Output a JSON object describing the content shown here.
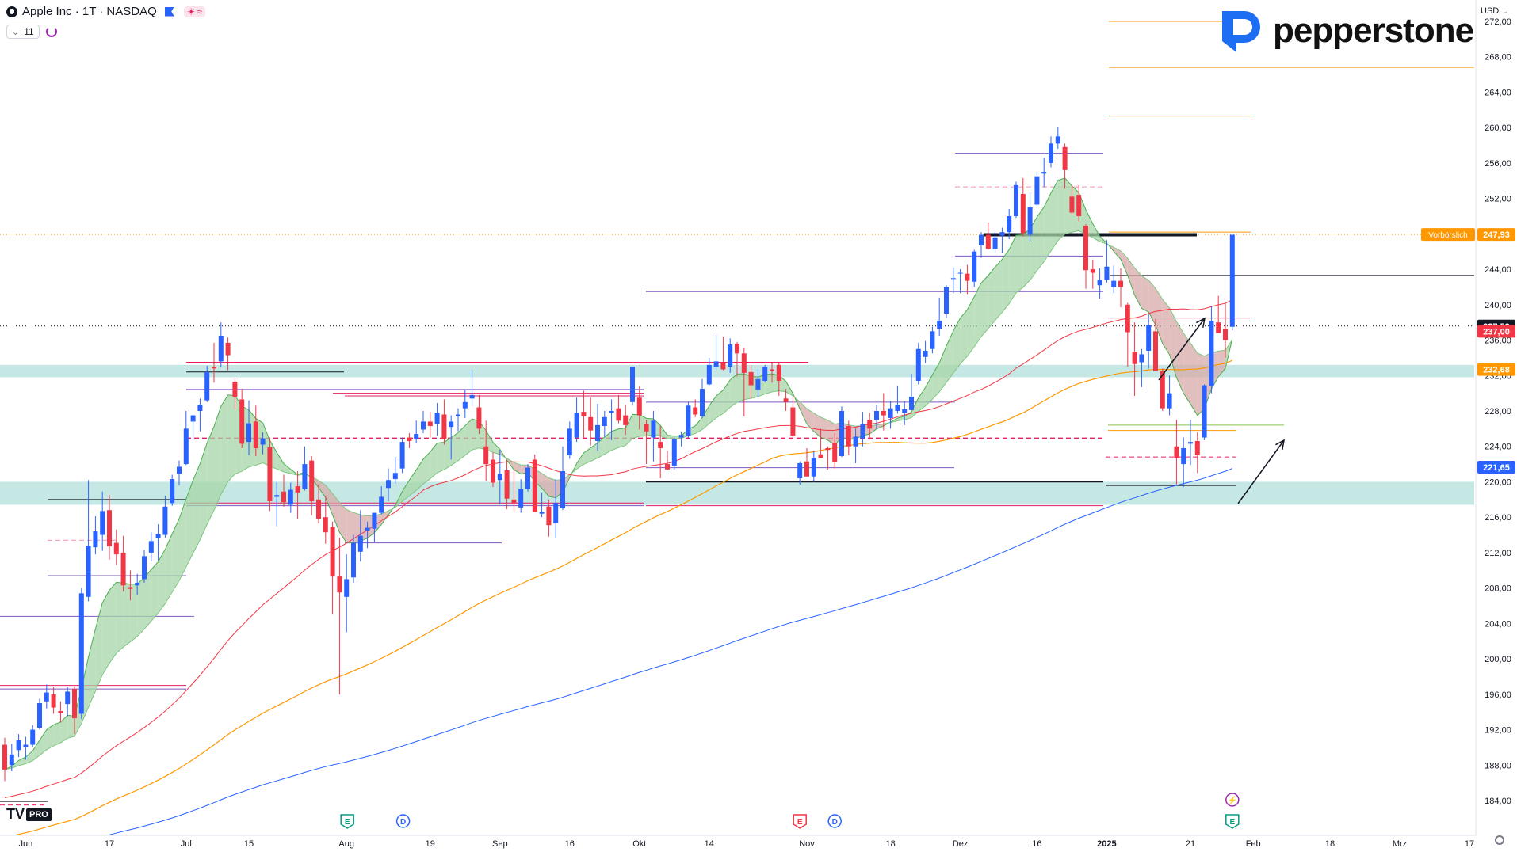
{
  "header": {
    "title": "Apple Inc · 1T · NASDAQ",
    "indicator_count": "11",
    "currency": "USD"
  },
  "brand": {
    "name": "pepperstone"
  },
  "chart_data": {
    "type": "candlestick",
    "y_range": [
      182,
      274
    ],
    "y_ticks": [
      "272,00",
      "268,00",
      "264,00",
      "260,00",
      "256,00",
      "252,00",
      "248,00",
      "244,00",
      "240,00",
      "236,00",
      "232,00",
      "228,00",
      "224,00",
      "220,00",
      "216,00",
      "212,00",
      "208,00",
      "204,00",
      "200,00",
      "196,00",
      "192,00",
      "188,00",
      "184,00"
    ],
    "x_labels": [
      {
        "label": "Jun",
        "i": 3,
        "bold": false
      },
      {
        "label": "17",
        "i": 15,
        "bold": false
      },
      {
        "label": "Jul",
        "i": 26,
        "bold": false
      },
      {
        "label": "15",
        "i": 35,
        "bold": false
      },
      {
        "label": "Aug",
        "i": 49,
        "bold": false
      },
      {
        "label": "19",
        "i": 61,
        "bold": false
      },
      {
        "label": "Sep",
        "i": 71,
        "bold": false
      },
      {
        "label": "16",
        "i": 81,
        "bold": false
      },
      {
        "label": "Okt",
        "i": 91,
        "bold": false
      },
      {
        "label": "14",
        "i": 101,
        "bold": false
      },
      {
        "label": "Nov",
        "i": 115,
        "bold": false
      },
      {
        "label": "18",
        ",i": 0,
        "i": 127,
        "bold": false
      },
      {
        "label": "Dez",
        "i": 137,
        "bold": false
      },
      {
        "label": "16",
        "i": 148,
        "bold": false
      },
      {
        "label": "2025",
        "i": 158,
        "bold": true
      },
      {
        "label": "21",
        "i": 170,
        "bold": false
      },
      {
        "label": "Feb",
        "i": 179,
        "bold": false
      },
      {
        "label": "18",
        "i": 190,
        "bold": false
      },
      {
        "label": "Mrz",
        "i": 200,
        "bold": false
      },
      {
        "label": "17",
        "i": 210,
        "bold": false
      }
    ],
    "price_labels": [
      {
        "text": "247,93",
        "value": 247.93,
        "color": "#ff9800",
        "tag": "Vorbörslich"
      },
      {
        "text": "237,59",
        "value": 237.59,
        "color": "#131722",
        "tag": ""
      },
      {
        "text": "237,00",
        "value": 237.0,
        "color": "#f23645",
        "tag": ""
      },
      {
        "text": "232,68",
        "value": 232.68,
        "color": "#ff9800",
        "tag": ""
      },
      {
        "text": "221,65",
        "value": 221.65,
        "color": "#2962ff",
        "tag": ""
      }
    ],
    "candles": [
      [
        190.3,
        191.1,
        186.2,
        187.5
      ],
      [
        188.0,
        190.4,
        187.3,
        189.2
      ],
      [
        189.7,
        191.5,
        188.9,
        190.8
      ],
      [
        190.0,
        191.2,
        188.6,
        190.3
      ],
      [
        190.3,
        192.5,
        190.0,
        192.0
      ],
      [
        192.2,
        195.5,
        192.0,
        195.0
      ],
      [
        195.2,
        197.1,
        194.4,
        196.2
      ],
      [
        196.0,
        196.8,
        193.8,
        194.5
      ],
      [
        194.1,
        195.2,
        192.8,
        193.9
      ],
      [
        194.9,
        196.8,
        193.5,
        196.3
      ],
      [
        196.6,
        196.9,
        191.5,
        193.3
      ],
      [
        193.8,
        208.0,
        193.2,
        207.4
      ],
      [
        207.0,
        220.2,
        206.5,
        212.8
      ],
      [
        212.6,
        216.1,
        211.8,
        214.4
      ],
      [
        214.0,
        218.9,
        212.2,
        216.7
      ],
      [
        216.8,
        218.5,
        211.2,
        212.7
      ],
      [
        213.1,
        214.6,
        210.6,
        211.8
      ],
      [
        212.0,
        213.9,
        207.6,
        208.3
      ],
      [
        208.1,
        210.0,
        206.6,
        207.9
      ],
      [
        208.3,
        209.6,
        207.2,
        208.6
      ],
      [
        209.0,
        212.3,
        208.6,
        211.6
      ],
      [
        212.0,
        214.3,
        211.0,
        213.3
      ],
      [
        213.6,
        215.2,
        211.1,
        214.1
      ],
      [
        214.0,
        218.4,
        213.7,
        217.2
      ],
      [
        217.6,
        220.8,
        217.3,
        220.3
      ],
      [
        220.9,
        222.4,
        219.6,
        221.7
      ],
      [
        222.0,
        228.0,
        221.9,
        226.0
      ],
      [
        226.8,
        227.6,
        224.7,
        227.5
      ],
      [
        228.0,
        229.4,
        225.7,
        228.7
      ],
      [
        229.2,
        233.1,
        229.0,
        232.4
      ],
      [
        233.0,
        235.7,
        231.2,
        232.8
      ],
      [
        233.6,
        238.0,
        233.0,
        236.5
      ],
      [
        235.7,
        236.3,
        232.6,
        234.3
      ],
      [
        231.3,
        231.7,
        228.2,
        229.6
      ],
      [
        229.3,
        230.5,
        223.8,
        224.3
      ],
      [
        224.5,
        229.2,
        223.0,
        226.6
      ],
      [
        226.8,
        228.6,
        222.9,
        223.8
      ],
      [
        224.2,
        225.6,
        223.1,
        224.9
      ],
      [
        223.9,
        225.0,
        216.7,
        217.8
      ],
      [
        218.3,
        220.0,
        215.0,
        218.5
      ],
      [
        218.9,
        220.8,
        217.2,
        217.7
      ],
      [
        217.4,
        219.9,
        216.5,
        219.1
      ],
      [
        219.5,
        221.2,
        215.8,
        218.8
      ],
      [
        219.2,
        224.0,
        219.0,
        222.0
      ],
      [
        222.4,
        222.9,
        216.2,
        217.8
      ],
      [
        218.0,
        219.7,
        215.3,
        215.8
      ],
      [
        216.0,
        218.4,
        213.0,
        214.3
      ],
      [
        214.9,
        215.5,
        205.0,
        209.3
      ],
      [
        209.3,
        213.7,
        196.0,
        207.5
      ],
      [
        207.0,
        211.8,
        203.0,
        209.0
      ],
      [
        209.2,
        214.0,
        208.6,
        213.1
      ],
      [
        212.1,
        216.8,
        211.0,
        213.9
      ],
      [
        214.5,
        215.5,
        212.5,
        214.8
      ],
      [
        214.7,
        216.2,
        213.2,
        216.5
      ],
      [
        216.5,
        219.5,
        216.3,
        218.3
      ],
      [
        219.3,
        221.5,
        217.8,
        220.2
      ],
      [
        220.3,
        222.8,
        219.8,
        221.0
      ],
      [
        221.5,
        225.0,
        221.0,
        224.5
      ],
      [
        225.0,
        225.5,
        223.8,
        224.6
      ],
      [
        224.8,
        226.9,
        224.4,
        225.4
      ],
      [
        225.9,
        228.0,
        225.5,
        226.8
      ],
      [
        226.8,
        227.9,
        225.0,
        226.3
      ],
      [
        226.5,
        228.9,
        225.2,
        227.8
      ],
      [
        227.6,
        229.3,
        224.2,
        224.8
      ],
      [
        226.2,
        227.5,
        222.5,
        226.8
      ],
      [
        227.4,
        228.3,
        225.7,
        227.6
      ],
      [
        228.3,
        230.4,
        227.2,
        229.0
      ],
      [
        229.4,
        232.6,
        228.6,
        229.8
      ],
      [
        228.4,
        229.8,
        225.4,
        226.0
      ],
      [
        224.0,
        226.9,
        220.1,
        222.0
      ],
      [
        222.5,
        223.3,
        219.4,
        219.9
      ],
      [
        220.2,
        223.6,
        217.5,
        220.9
      ],
      [
        221.3,
        222.5,
        216.9,
        218.1
      ],
      [
        218.0,
        221.3,
        216.6,
        217.6
      ],
      [
        217.1,
        220.3,
        216.5,
        219.2
      ],
      [
        219.2,
        222.0,
        218.9,
        221.6
      ],
      [
        222.5,
        223.1,
        216.9,
        216.6
      ],
      [
        216.4,
        218.8,
        216.0,
        216.6
      ],
      [
        217.2,
        218.0,
        213.8,
        215.1
      ],
      [
        215.3,
        220.3,
        213.6,
        217.6
      ],
      [
        217.0,
        224.0,
        216.8,
        221.2
      ],
      [
        223.0,
        226.8,
        222.6,
        226.0
      ],
      [
        225.0,
        229.5,
        224.5,
        227.8
      ],
      [
        227.9,
        230.3,
        225.0,
        227.4
      ],
      [
        227.3,
        229.5,
        224.1,
        225.8
      ],
      [
        224.6,
        228.8,
        223.5,
        226.4
      ],
      [
        226.3,
        228.0,
        225.1,
        227.3
      ],
      [
        227.8,
        229.3,
        224.7,
        228.0
      ],
      [
        228.3,
        229.8,
        226.6,
        226.9
      ],
      [
        227.5,
        228.7,
        225.3,
        226.4
      ],
      [
        229.0,
        233.0,
        228.6,
        233.0
      ],
      [
        229.5,
        230.8,
        225.9,
        227.5
      ],
      [
        226.5,
        227.0,
        222.0,
        225.7
      ],
      [
        225.0,
        228.0,
        222.3,
        226.9
      ],
      [
        224.5,
        226.3,
        220.4,
        223.8
      ],
      [
        222.0,
        223.5,
        221.3,
        221.4
      ],
      [
        221.8,
        225.0,
        221.4,
        224.8
      ],
      [
        225.0,
        225.7,
        224.0,
        225.3
      ],
      [
        225.2,
        229.0,
        224.9,
        228.6
      ],
      [
        228.4,
        229.3,
        227.3,
        227.6
      ],
      [
        227.4,
        231.6,
        227.2,
        230.5
      ],
      [
        231.0,
        234.0,
        230.9,
        233.2
      ],
      [
        233.0,
        236.6,
        232.7,
        233.6
      ],
      [
        233.5,
        236.4,
        232.6,
        232.7
      ],
      [
        233.0,
        236.2,
        232.3,
        235.5
      ],
      [
        235.6,
        235.8,
        231.9,
        234.5
      ],
      [
        234.5,
        235.1,
        227.4,
        232.3
      ],
      [
        232.4,
        233.2,
        229.4,
        230.9
      ],
      [
        230.4,
        232.7,
        229.6,
        231.6
      ],
      [
        231.4,
        233.2,
        231.2,
        233.0
      ],
      [
        232.7,
        233.5,
        231.2,
        232.5
      ],
      [
        233.2,
        233.5,
        229.7,
        231.4
      ],
      [
        229.4,
        230.5,
        228.0,
        229.0
      ],
      [
        228.4,
        229.6,
        225.0,
        225.2
      ],
      [
        220.4,
        222.3,
        219.7,
        222.1
      ],
      [
        222.3,
        223.8,
        221.2,
        220.6
      ],
      [
        220.6,
        223.5,
        220.0,
        222.7
      ],
      [
        223.1,
        226.0,
        222.7,
        222.7
      ],
      [
        223.8,
        224.0,
        221.4,
        223.6
      ],
      [
        224.4,
        225.5,
        221.5,
        222.2
      ],
      [
        222.9,
        228.5,
        222.8,
        228.0
      ],
      [
        226.3,
        226.9,
        223.0,
        224.0
      ],
      [
        224.0,
        226.0,
        222.1,
        225.1
      ],
      [
        224.9,
        227.9,
        224.0,
        226.5
      ],
      [
        227.0,
        227.8,
        224.8,
        226.0
      ],
      [
        227.0,
        228.7,
        226.0,
        228.0
      ],
      [
        228.0,
        230.0,
        225.8,
        227.5
      ],
      [
        227.2,
        229.1,
        226.0,
        228.3
      ],
      [
        228.0,
        230.8,
        227.7,
        228.7
      ],
      [
        227.8,
        229.1,
        226.4,
        228.2
      ],
      [
        228.1,
        232.2,
        228.1,
        229.6
      ],
      [
        231.4,
        235.7,
        231.0,
        235.0
      ],
      [
        234.1,
        235.9,
        233.4,
        234.8
      ],
      [
        235.0,
        237.5,
        234.5,
        237.0
      ],
      [
        237.3,
        240.8,
        236.5,
        238.2
      ],
      [
        239.0,
        242.2,
        238.5,
        242.0
      ],
      [
        242.9,
        244.2,
        241.3,
        243.0
      ],
      [
        243.6,
        244.0,
        241.3,
        243.6
      ],
      [
        243.5,
        244.5,
        241.2,
        242.7
      ],
      [
        242.6,
        246.2,
        242.0,
        246.0
      ],
      [
        246.7,
        248.2,
        245.3,
        247.9
      ],
      [
        247.9,
        249.3,
        246.2,
        246.3
      ],
      [
        246.3,
        248.2,
        245.8,
        247.6
      ],
      [
        247.8,
        248.7,
        245.8,
        248.2
      ],
      [
        248.2,
        250.8,
        247.4,
        250.0
      ],
      [
        250.0,
        253.9,
        249.8,
        253.5
      ],
      [
        252.5,
        254.3,
        247.7,
        248.1
      ],
      [
        247.9,
        252.7,
        247.1,
        251.0
      ],
      [
        251.3,
        255.0,
        251.1,
        254.5
      ],
      [
        254.8,
        256.6,
        253.3,
        255.0
      ],
      [
        256.0,
        259.0,
        255.5,
        258.2
      ],
      [
        258.2,
        260.1,
        257.6,
        259.0
      ],
      [
        257.8,
        258.2,
        253.1,
        255.2
      ],
      [
        252.2,
        253.5,
        250.1,
        250.4
      ],
      [
        252.4,
        253.5,
        249.4,
        250.0
      ],
      [
        248.9,
        249.1,
        241.8,
        243.9
      ],
      [
        244.0,
        245.1,
        241.8,
        243.6
      ],
      [
        242.2,
        244.1,
        240.7,
        242.8
      ],
      [
        242.8,
        247.3,
        242.5,
        244.3
      ],
      [
        242.0,
        244.4,
        241.3,
        242.7
      ],
      [
        242.7,
        244.1,
        239.7,
        242.0
      ],
      [
        240.0,
        240.2,
        233.0,
        236.9
      ],
      [
        234.7,
        238.0,
        229.7,
        233.3
      ],
      [
        233.5,
        235.0,
        230.7,
        234.4
      ],
      [
        234.8,
        238.9,
        232.8,
        237.7
      ],
      [
        237.0,
        238.4,
        232.5,
        232.5
      ],
      [
        232.5,
        232.8,
        228.0,
        228.3
      ],
      [
        228.3,
        232.0,
        227.5,
        230.0
      ],
      [
        224.0,
        227.0,
        219.7,
        222.7
      ],
      [
        222.0,
        225.0,
        219.4,
        223.8
      ],
      [
        224.3,
        227.0,
        221.9,
        224.5
      ],
      [
        224.6,
        225.6,
        221.0,
        223.0
      ],
      [
        225.0,
        231.0,
        224.7,
        230.9
      ],
      [
        230.8,
        239.9,
        230.0,
        238.2
      ],
      [
        238.0,
        241.0,
        236.9,
        236.8
      ],
      [
        237.3,
        240.2,
        234.0,
        236.0
      ],
      [
        237.5,
        247.9,
        237.1,
        247.9
      ]
    ],
    "overlays": {
      "ema_fast_last": 233.0,
      "ema_slow_last": 232.6,
      "sma_red_last": 237.0,
      "sma_orange_last": 232.7,
      "sma_blue_last": 221.6
    }
  }
}
